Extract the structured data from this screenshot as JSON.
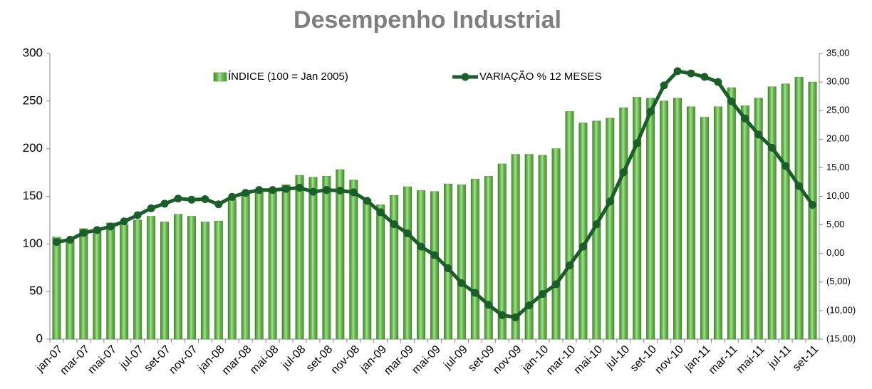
{
  "chart_data": {
    "type": "combo",
    "title": "Desempenho Industrial",
    "categories": [
      "jan-07",
      null,
      "mar-07",
      null,
      "mai-07",
      null,
      "jul-07",
      null,
      "set-07",
      null,
      "nov-07",
      null,
      "jan-08",
      null,
      "mar-08",
      null,
      "mai-08",
      null,
      "jul-08",
      null,
      "set-08",
      null,
      "nov-08",
      null,
      "jan-09",
      null,
      "mar-09",
      null,
      "mai-09",
      null,
      "jul-09",
      null,
      "set-09",
      null,
      "nov-09",
      null,
      "jan-10",
      null,
      "mar-10",
      null,
      "mai-10",
      null,
      "jul-10",
      null,
      "set-10",
      null,
      "nov-10",
      null,
      "jan-11",
      null,
      "mar-11",
      null,
      "mai-11",
      null,
      "jul-11",
      null,
      "set-11"
    ],
    "series": [
      {
        "name": "ÍNDICE (100 = Jan 2005)",
        "type": "bar",
        "color": "#5cc83a",
        "axis": "y",
        "values": [
          107,
          104,
          116,
          115,
          122,
          120,
          125,
          129,
          123,
          131,
          129,
          123,
          124,
          147,
          154,
          157,
          158,
          162,
          172,
          170,
          171,
          178,
          167,
          147,
          141,
          151,
          160,
          156,
          155,
          163,
          162,
          168,
          171,
          184,
          194,
          194,
          193,
          200,
          239,
          227,
          229,
          232,
          243,
          254,
          253,
          250,
          253,
          244,
          233,
          244,
          264,
          245,
          253,
          265,
          268,
          275,
          270
        ]
      },
      {
        "name": "VARIAÇÃO % 12 MESES",
        "type": "line",
        "color": "#1b5e2a",
        "axis": "y2",
        "values": [
          2.0,
          2.4,
          3.6,
          4.1,
          4.7,
          5.6,
          6.7,
          7.9,
          8.7,
          9.6,
          9.4,
          9.5,
          8.6,
          9.9,
          10.6,
          11.1,
          11.1,
          11.3,
          11.5,
          10.8,
          11.1,
          11.0,
          10.7,
          9.2,
          7.2,
          5.1,
          3.5,
          1.2,
          -0.3,
          -2.6,
          -5.2,
          -6.9,
          -9.0,
          -10.8,
          -11.2,
          -9.1,
          -7.1,
          -5.4,
          -2.1,
          1.2,
          5.1,
          9.1,
          14.2,
          19.3,
          24.8,
          29.4,
          31.9,
          31.5,
          30.9,
          30.0,
          26.6,
          23.6,
          20.8,
          18.5,
          15.3,
          11.8,
          8.5
        ]
      }
    ],
    "ylim": [
      0,
      300
    ],
    "yticks": [
      0,
      50,
      100,
      150,
      200,
      250,
      300
    ],
    "y2lim": [
      -15,
      35
    ],
    "y2ticks": [
      {
        "value": -15,
        "label": "(15,00)"
      },
      {
        "value": -10,
        "label": "(10,00)"
      },
      {
        "value": -5,
        "label": "(5,00)"
      },
      {
        "value": 0,
        "label": "0,00"
      },
      {
        "value": 5,
        "label": "5,00"
      },
      {
        "value": 10,
        "label": "10,00"
      },
      {
        "value": 15,
        "label": "15,00"
      },
      {
        "value": 20,
        "label": "20,00"
      },
      {
        "value": 25,
        "label": "25,00"
      },
      {
        "value": 30,
        "label": "30,00"
      },
      {
        "value": 35,
        "label": "35,00"
      }
    ],
    "grid": false
  }
}
